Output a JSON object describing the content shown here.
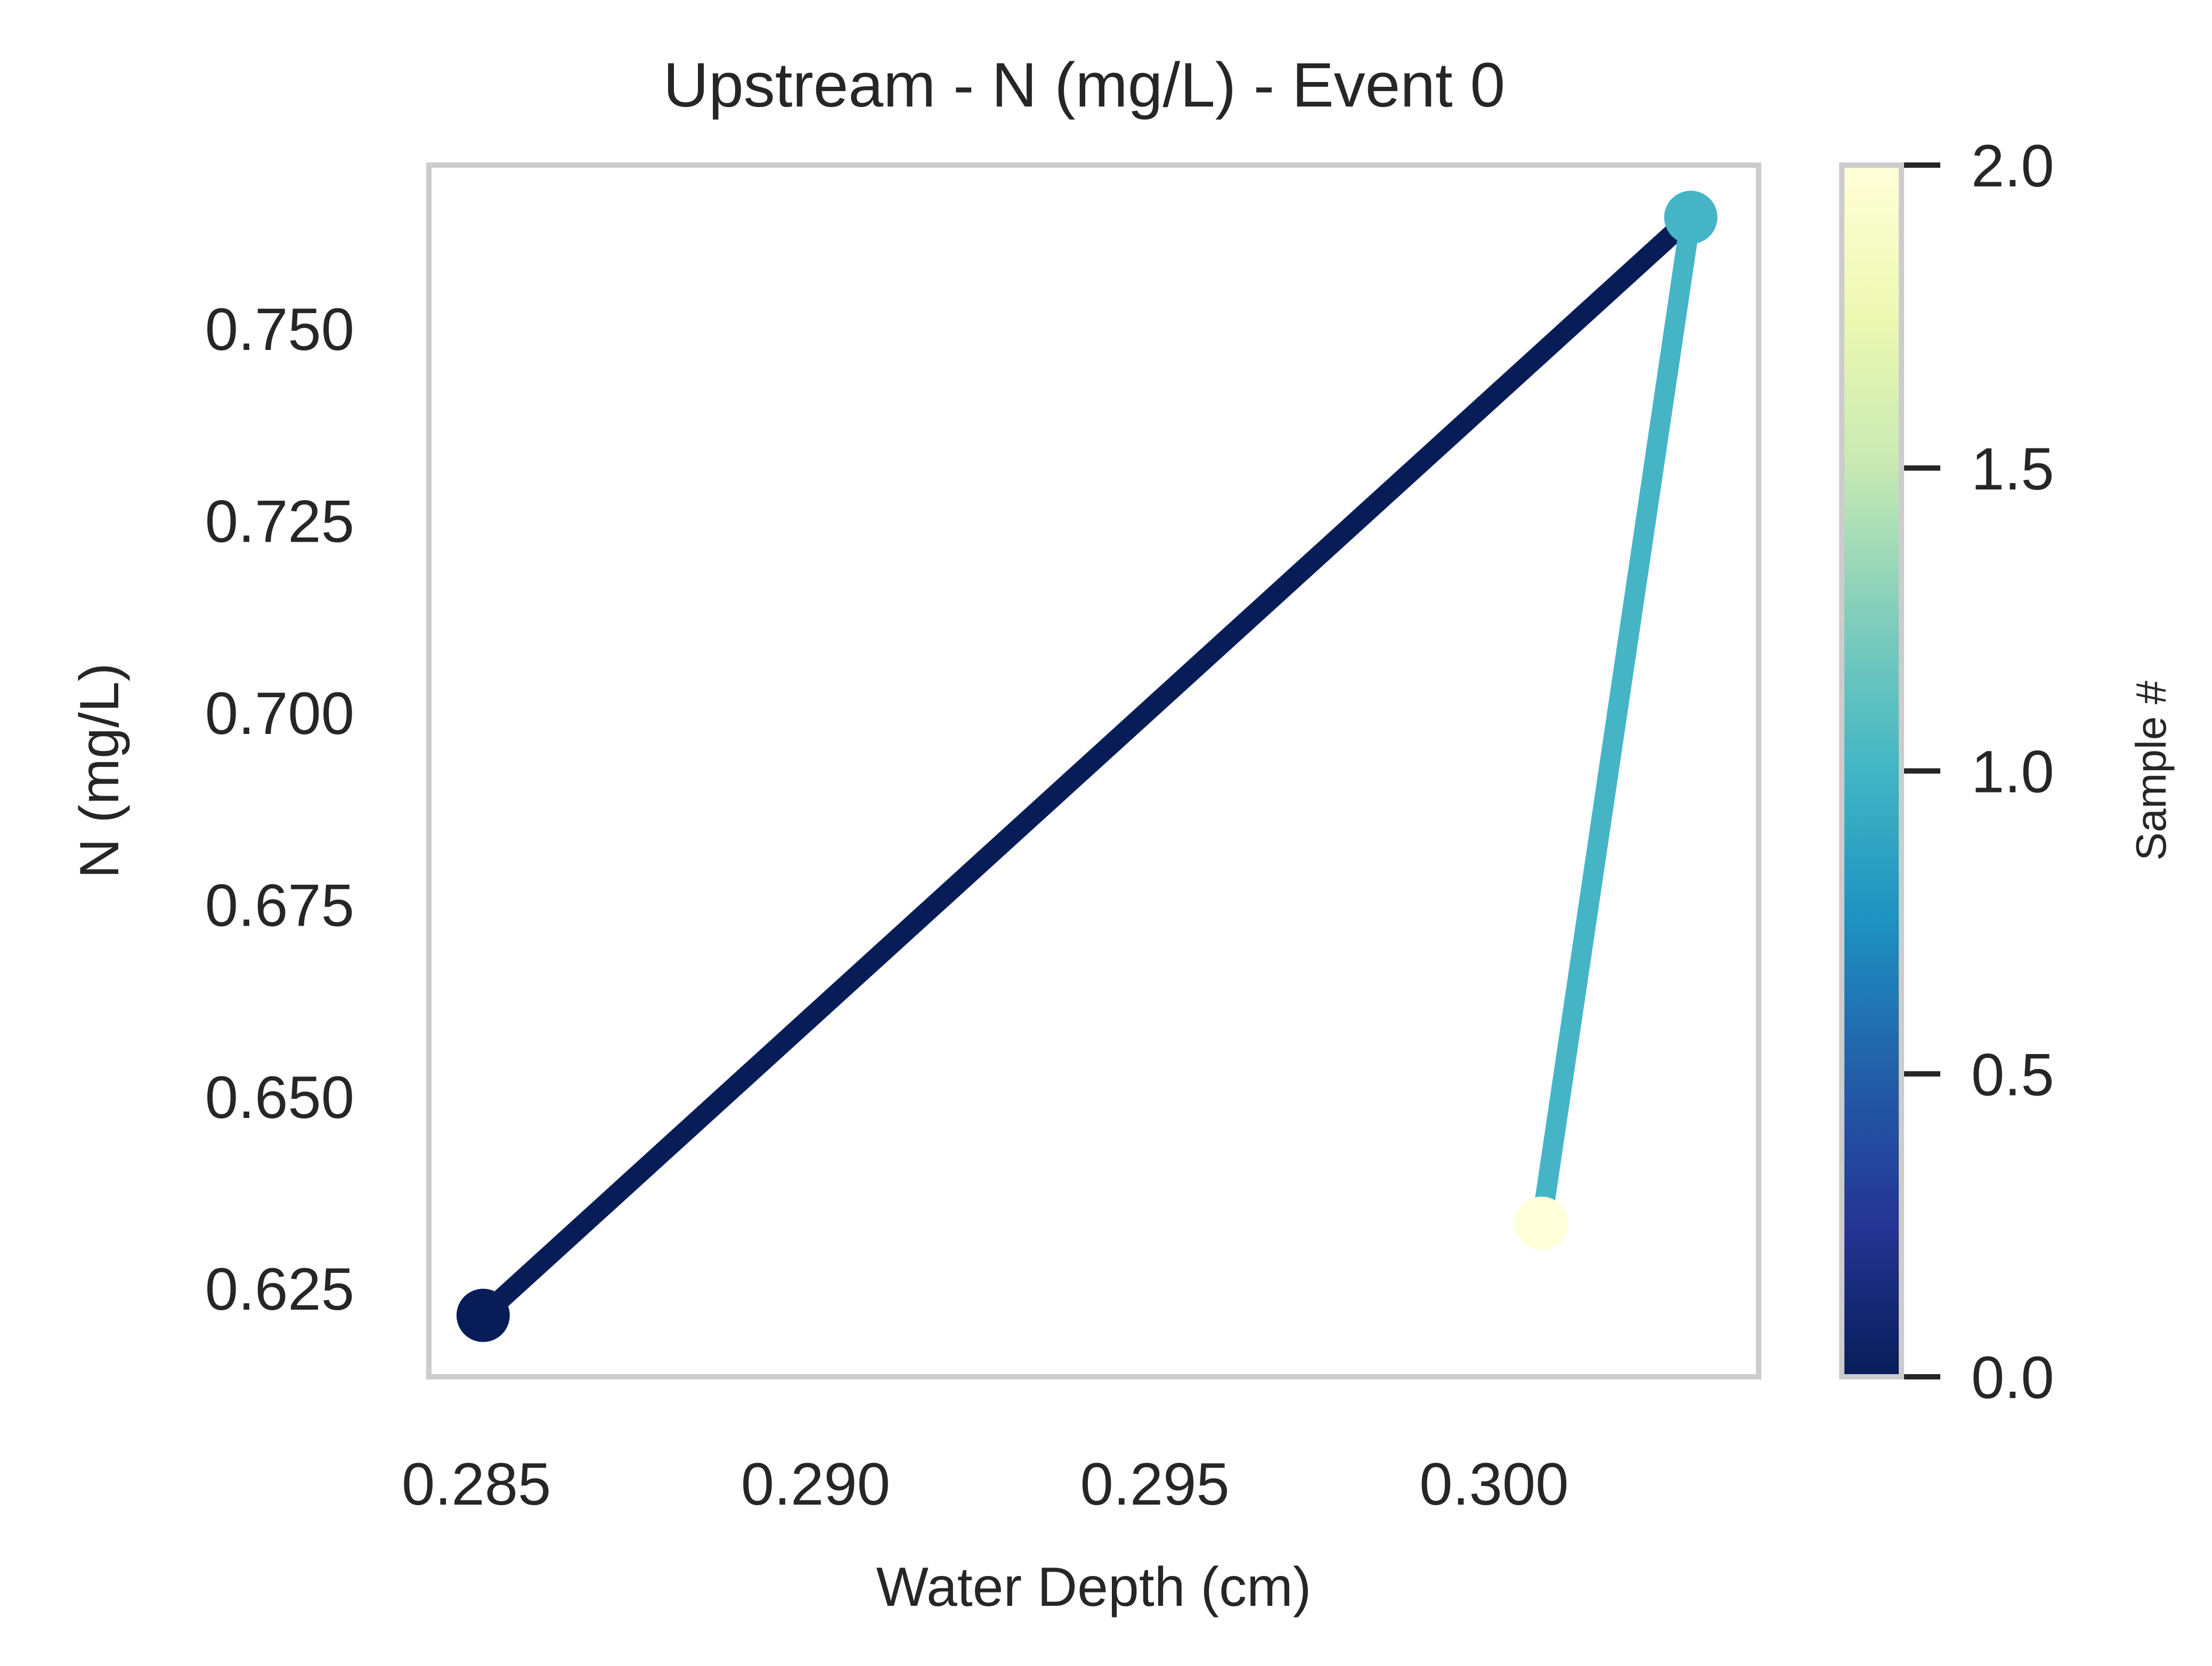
{
  "chart_data": {
    "type": "line",
    "title": "Upstream - N (mg/L) - Event 0",
    "xlabel": "Water Depth (cm)",
    "ylabel": "N (mg/L)",
    "xlim": [
      0.2843,
      0.3039
    ],
    "ylim": [
      0.6135,
      0.7713
    ],
    "xticks": [
      0.285,
      0.29,
      0.295,
      0.3
    ],
    "xtick_labels": [
      "0.285",
      "0.290",
      "0.295",
      "0.300"
    ],
    "yticks": [
      0.625,
      0.65,
      0.675,
      0.7,
      0.725,
      0.75
    ],
    "ytick_labels": [
      "0.625",
      "0.650",
      "0.675",
      "0.700",
      "0.725",
      "0.750"
    ],
    "grid": false,
    "points": [
      {
        "sample": 0,
        "x": 0.2851,
        "y": 0.6215
      },
      {
        "sample": 1,
        "x": 0.3029,
        "y": 0.7645
      },
      {
        "sample": 2,
        "x": 0.3007,
        "y": 0.6335
      }
    ],
    "colorbar": {
      "label": "Sample #",
      "range": [
        0,
        2
      ],
      "colormap": "YlGnBu_r",
      "ticks": [
        0,
        0.5,
        1,
        1.5,
        2
      ],
      "tick_labels": [
        "0.0",
        "0.5",
        "1.0",
        "1.5",
        "2.0"
      ]
    },
    "colors": {
      "sample_0": "#081d58",
      "sample_1": "#45b5c6",
      "sample_2": "#ffffd9",
      "frame": "#cccccc",
      "text": "#262626"
    }
  }
}
